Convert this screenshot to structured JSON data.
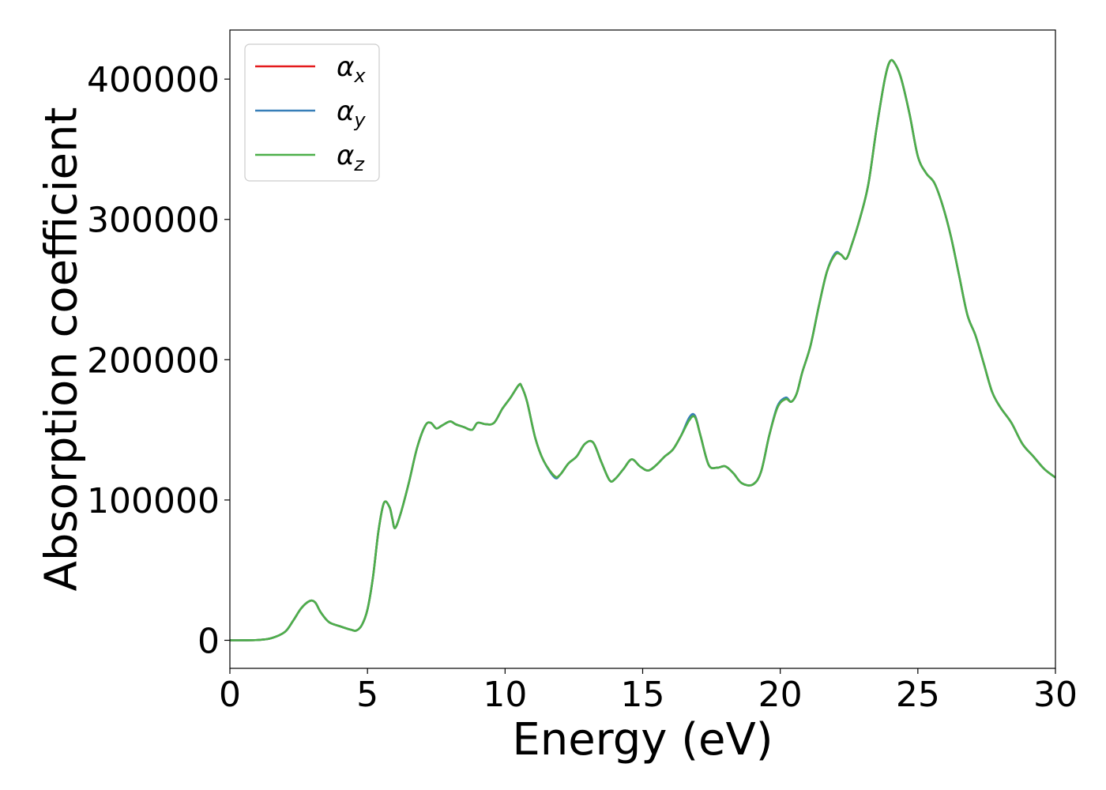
{
  "chart_data": {
    "type": "line",
    "xlabel": "Energy (eV)",
    "ylabel": "Absorption coefficient",
    "xlim": [
      0,
      30
    ],
    "ylim": [
      -20000,
      435000
    ],
    "xticks": [
      0,
      5,
      10,
      15,
      20,
      25,
      30
    ],
    "xtick_labels": [
      "0",
      "5",
      "10",
      "15",
      "20",
      "25",
      "30"
    ],
    "yticks": [
      0,
      100000,
      200000,
      300000,
      400000
    ],
    "ytick_labels": [
      "0",
      "100000",
      "200000",
      "300000",
      "400000"
    ],
    "grid": false,
    "legend": {
      "placement": "top-left",
      "entries": [
        {
          "symbol": "α",
          "subscript": "x"
        },
        {
          "symbol": "α",
          "subscript": "y"
        },
        {
          "symbol": "α",
          "subscript": "z"
        }
      ]
    },
    "x": [
      0,
      0.5,
      1.0,
      1.5,
      2.0,
      2.3,
      2.6,
      2.9,
      3.1,
      3.3,
      3.6,
      4.0,
      4.4,
      4.6,
      4.8,
      5.0,
      5.2,
      5.4,
      5.6,
      5.8,
      5.9,
      6.0,
      6.2,
      6.5,
      6.8,
      7.1,
      7.3,
      7.5,
      7.7,
      8.0,
      8.2,
      8.5,
      8.8,
      9.0,
      9.3,
      9.6,
      9.9,
      10.2,
      10.5,
      10.6,
      10.8,
      11.1,
      11.4,
      11.8,
      12.0,
      12.3,
      12.6,
      12.9,
      13.2,
      13.5,
      13.8,
      14.0,
      14.3,
      14.6,
      14.9,
      15.2,
      15.5,
      15.8,
      16.1,
      16.4,
      16.7,
      16.9,
      17.1,
      17.4,
      17.7,
      18.0,
      18.3,
      18.6,
      19.0,
      19.3,
      19.6,
      19.9,
      20.2,
      20.4,
      20.6,
      20.8,
      21.1,
      21.4,
      21.7,
      22.0,
      22.2,
      22.4,
      22.6,
      22.9,
      23.2,
      23.5,
      23.8,
      24.0,
      24.2,
      24.4,
      24.7,
      25.0,
      25.3,
      25.6,
      25.9,
      26.2,
      26.5,
      26.8,
      27.1,
      27.4,
      27.7,
      28.0,
      28.4,
      28.8,
      29.2,
      29.6,
      30.0
    ],
    "series": [
      {
        "name": "αx",
        "color": "#e41a1c",
        "values": [
          0,
          0,
          200,
          1500,
          6000,
          14000,
          23000,
          28000,
          27000,
          20000,
          13000,
          10000,
          7500,
          7000,
          11000,
          22000,
          45000,
          78000,
          98000,
          95000,
          87000,
          80000,
          90000,
          112000,
          137000,
          153000,
          155000,
          151000,
          153000,
          156000,
          154000,
          152000,
          150000,
          155000,
          154000,
          155000,
          165000,
          173000,
          182000,
          181000,
          170000,
          144000,
          128000,
          117000,
          118000,
          126000,
          131000,
          140000,
          141000,
          127000,
          114000,
          115000,
          122000,
          129000,
          124000,
          121000,
          125000,
          131000,
          136000,
          146000,
          158000,
          160000,
          146000,
          125000,
          123000,
          124000,
          119000,
          112000,
          111000,
          120000,
          146000,
          166000,
          172000,
          170000,
          176000,
          191000,
          210000,
          238000,
          263000,
          275000,
          275000,
          272000,
          282000,
          301000,
          325000,
          365000,
          400000,
          413000,
          410000,
          400000,
          375000,
          345000,
          333000,
          326000,
          310000,
          288000,
          260000,
          232000,
          217000,
          197000,
          177000,
          166000,
          155000,
          140000,
          131000,
          122000,
          116000
        ]
      },
      {
        "name": "αy",
        "color": "#377eb8",
        "values": [
          0,
          0,
          200,
          1500,
          6000,
          14000,
          23000,
          28000,
          27000,
          20000,
          13000,
          10000,
          7500,
          7000,
          11000,
          22000,
          45000,
          78000,
          98000,
          95000,
          87000,
          80000,
          90000,
          112000,
          137000,
          153000,
          155000,
          151000,
          153000,
          156000,
          154000,
          152000,
          150000,
          155000,
          154000,
          155000,
          165000,
          173000,
          182000,
          181000,
          170000,
          144000,
          128000,
          116000,
          118000,
          126000,
          131000,
          140000,
          141000,
          127000,
          114000,
          115000,
          122000,
          129000,
          124000,
          121000,
          125000,
          131000,
          136000,
          146000,
          159000,
          160000,
          146000,
          125000,
          123000,
          124000,
          119000,
          112000,
          111000,
          120000,
          146000,
          167000,
          173000,
          170000,
          176000,
          191000,
          210000,
          238000,
          263000,
          276000,
          275000,
          272000,
          282000,
          301000,
          325000,
          365000,
          400000,
          413000,
          410000,
          400000,
          375000,
          345000,
          333000,
          326000,
          310000,
          288000,
          260000,
          232000,
          217000,
          197000,
          177000,
          166000,
          155000,
          140000,
          131000,
          122000,
          116000
        ]
      },
      {
        "name": "αz",
        "color": "#4daf4a",
        "values": [
          0,
          0,
          200,
          1500,
          6000,
          14000,
          23000,
          28000,
          27000,
          20000,
          13000,
          10000,
          7500,
          7000,
          11000,
          22000,
          45000,
          78000,
          98000,
          95000,
          87000,
          80000,
          90000,
          112000,
          137000,
          153000,
          155000,
          151000,
          153000,
          156000,
          154000,
          152000,
          150000,
          155000,
          154000,
          155000,
          165000,
          173000,
          182000,
          181000,
          170000,
          144000,
          128000,
          117000,
          118000,
          126000,
          131000,
          140000,
          141000,
          127000,
          114000,
          115000,
          122000,
          129000,
          124000,
          121000,
          125000,
          131000,
          136000,
          146000,
          157000,
          159000,
          146000,
          125000,
          123000,
          124000,
          119000,
          112000,
          111000,
          120000,
          146000,
          166000,
          172000,
          170000,
          176000,
          191000,
          210000,
          238000,
          263000,
          275000,
          275000,
          272000,
          282000,
          301000,
          325000,
          365000,
          400000,
          413000,
          410000,
          400000,
          375000,
          345000,
          333000,
          326000,
          310000,
          288000,
          260000,
          232000,
          217000,
          197000,
          177000,
          166000,
          155000,
          140000,
          131000,
          122000,
          116000
        ]
      }
    ]
  }
}
